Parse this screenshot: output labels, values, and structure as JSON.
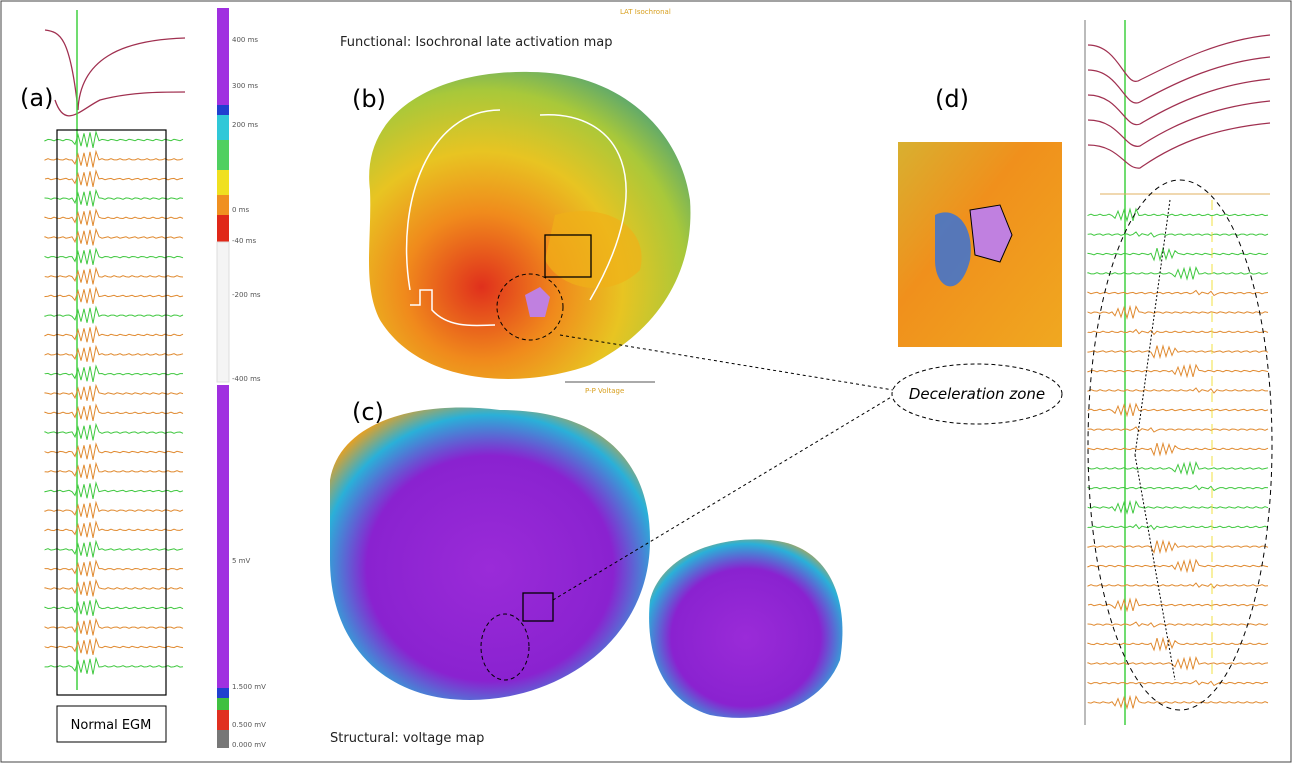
{
  "panels": {
    "a": "(a)",
    "b": "(b)",
    "c": "(c)",
    "d": "(d)"
  },
  "titles": {
    "functional": "Functional: Isochronal late activation map",
    "structural": "Structural: voltage map"
  },
  "annotations": {
    "deceleration_zone": "Deceleration zone",
    "normal_egm": "Normal EGM",
    "lat_map_label": "LAT Isochronal",
    "voltage_map_label": "P-P Voltage"
  },
  "colorbar": {
    "labels": [
      "400 ms",
      "300 ms",
      "200 ms",
      "0 ms",
      "-40 ms",
      "-200 ms",
      "-400 ms",
      "5 mV",
      "1.500 mV",
      "0.500 mV",
      "0.000 mV"
    ]
  }
}
